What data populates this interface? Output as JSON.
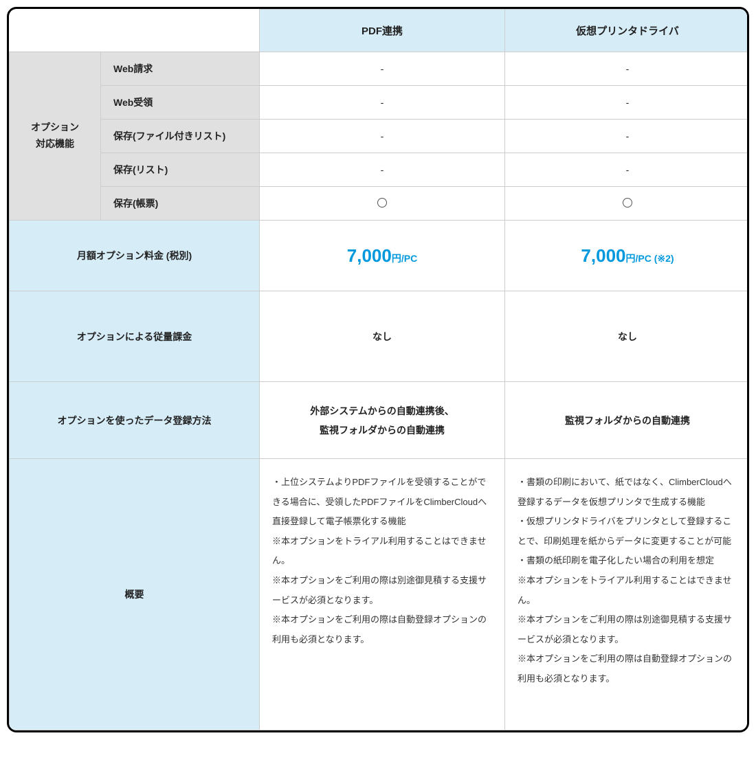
{
  "colors": {
    "border_outer": "#000000",
    "border_inner": "#cccccc",
    "header_blue": "#d6edf8",
    "label_blue": "#d6edf8",
    "feature_gray": "#e0e0e0",
    "text": "#222222",
    "price_accent": "#0099dd",
    "circle_stroke": "#555555",
    "background": "#ffffff"
  },
  "columns": {
    "col1_label": "PDF連携",
    "col2_label": "仮想プリンタドライバ"
  },
  "features": {
    "group_label_line1": "オプション",
    "group_label_line2": "対応機能",
    "rows": [
      {
        "label": "Web請求",
        "col1": "-",
        "col2": "-"
      },
      {
        "label": "Web受領",
        "col1": "-",
        "col2": "-"
      },
      {
        "label": "保存(ファイル付きリスト)",
        "col1": "-",
        "col2": "-"
      },
      {
        "label": "保存(リスト)",
        "col1": "-",
        "col2": "-"
      },
      {
        "label": "保存(帳票)",
        "col1": "○",
        "col2": "○"
      }
    ]
  },
  "price": {
    "label": "月額オプション料金 (税別)",
    "col1_amount": "7,000",
    "col1_unit": "円/PC",
    "col2_amount": "7,000",
    "col2_unit": "円/PC",
    "col2_note": " (※2)"
  },
  "usage_charge": {
    "label": "オプションによる従量課金",
    "col1": "なし",
    "col2": "なし"
  },
  "method": {
    "label": "オプションを使ったデータ登録方法",
    "col1_line1": "外部システムからの自動連携後、",
    "col1_line2": "監視フォルダからの自動連携",
    "col2": "監視フォルダからの自動連携"
  },
  "overview": {
    "label": "概要",
    "col1_lines": [
      "・上位システムよりPDFファイルを受領することができる場合に、受領したPDFファイルをClimberCloudへ直接登録して電子帳票化する機能",
      "※本オプションをトライアル利用することはできません。",
      "※本オプションをご利用の際は別途御見積する支援サービスが必須となります。",
      "※本オプションをご利用の際は自動登録オプションの利用も必須となります。"
    ],
    "col2_lines": [
      "・書類の印刷において、紙ではなく、ClimberCloudへ登録するデータを仮想プリンタで生成する機能",
      "・仮想プリンタドライバをプリンタとして登録することで、印刷処理を紙からデータに変更することが可能",
      "・書類の紙印刷を電子化したい場合の利用を想定",
      "※本オプションをトライアル利用することはできません。",
      "※本オプションをご利用の際は別途御見積する支援サービスが必須となります。",
      "※本オプションをご利用の際は自動登録オプションの利用も必須となります。"
    ]
  }
}
